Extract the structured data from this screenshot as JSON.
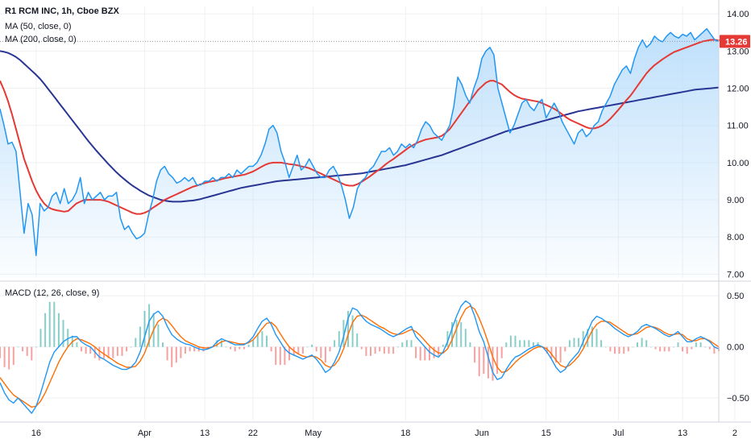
{
  "legend": {
    "symbol_line": "R1 RCM INC, 1h, Cboe BZX",
    "ma50": "MA (50, close, 0)",
    "ma200": "MA (200, close, 0)",
    "macd": "MACD (12, 26, close, 9)"
  },
  "last_price": "13.26",
  "colors": {
    "price": "#2196f3",
    "price_fill_top": "#bbdefb",
    "ma50": "#e53935",
    "ma200": "#283593",
    "macd_line": "#2196f3",
    "signal_line": "#ff6d00",
    "hist_pos": "#26a69a",
    "hist_neg": "#ef5350",
    "last_price_bg": "#e53935",
    "grid": "#eef0f3"
  },
  "chart_data": [
    {
      "type": "line",
      "ylim": [
        6.9,
        14.2
      ],
      "y_ticks": [
        "14.00",
        "13.00",
        "12.00",
        "11.00",
        "10.00",
        "9.00",
        "8.00",
        "7.00"
      ],
      "y_tick_values": [
        14,
        13,
        12,
        11,
        10,
        9,
        8,
        7
      ],
      "x_tick_labels": [
        "16",
        "Apr",
        "13",
        "22",
        "May",
        "18",
        "Jun",
        "15",
        "Jul",
        "13",
        "2"
      ],
      "x_tick_index": [
        9,
        36,
        51,
        63,
        78,
        101,
        120,
        136,
        154,
        170,
        183
      ],
      "series": [
        {
          "name": "Price",
          "values": [
            11.45,
            11.0,
            10.5,
            10.55,
            10.3,
            9.2,
            8.1,
            8.9,
            8.6,
            7.5,
            8.9,
            8.7,
            8.8,
            9.1,
            9.2,
            8.9,
            9.3,
            8.9,
            9.0,
            9.2,
            9.6,
            8.9,
            9.2,
            9.0,
            9.1,
            9.2,
            9.0,
            9.1,
            9.1,
            9.2,
            8.5,
            8.2,
            8.3,
            8.1,
            7.95,
            8.0,
            8.1,
            8.6,
            9.0,
            9.5,
            9.8,
            9.9,
            9.7,
            9.6,
            9.45,
            9.5,
            9.6,
            9.5,
            9.6,
            9.4,
            9.4,
            9.5,
            9.5,
            9.6,
            9.5,
            9.6,
            9.6,
            9.7,
            9.6,
            9.8,
            9.7,
            9.8,
            9.9,
            9.9,
            10.0,
            10.2,
            10.5,
            10.9,
            11.0,
            10.8,
            10.3,
            10.0,
            9.6,
            9.9,
            10.2,
            9.8,
            9.9,
            10.1,
            9.9,
            9.7,
            9.6,
            9.6,
            9.8,
            9.9,
            9.7,
            9.4,
            9.0,
            8.5,
            8.8,
            9.3,
            9.5,
            9.6,
            9.8,
            9.9,
            10.1,
            10.3,
            10.3,
            10.4,
            10.2,
            10.3,
            10.5,
            10.4,
            10.5,
            10.4,
            10.6,
            10.9,
            11.1,
            11.0,
            10.8,
            10.7,
            10.6,
            10.8,
            11.0,
            11.5,
            12.3,
            12.1,
            11.8,
            11.6,
            12.0,
            12.3,
            12.8,
            13.0,
            13.1,
            12.9,
            12.0,
            11.6,
            11.2,
            10.8,
            11.0,
            11.3,
            11.6,
            11.7,
            11.5,
            11.4,
            11.6,
            11.7,
            11.2,
            11.4,
            11.6,
            11.4,
            11.1,
            10.9,
            10.7,
            10.5,
            10.8,
            10.9,
            10.7,
            10.8,
            11.0,
            11.1,
            11.4,
            11.6,
            11.8,
            12.1,
            12.3,
            12.5,
            12.6,
            12.4,
            12.8,
            13.1,
            13.3,
            13.1,
            13.2,
            13.4,
            13.3,
            13.25,
            13.4,
            13.5,
            13.4,
            13.35,
            13.45,
            13.4,
            13.5,
            13.3,
            13.4,
            13.5,
            13.6,
            13.45,
            13.3,
            13.26
          ]
        },
        {
          "name": "MA (50, close, 0)",
          "values": [
            12.2,
            11.95,
            11.65,
            11.3,
            10.9,
            10.5,
            10.1,
            9.8,
            9.5,
            9.25,
            9.05,
            8.9,
            8.8,
            8.75,
            8.72,
            8.7,
            8.68,
            8.7,
            8.8,
            8.9,
            8.95,
            9.0,
            9.0,
            9.0,
            9.0,
            9.0,
            8.98,
            8.95,
            8.9,
            8.85,
            8.8,
            8.75,
            8.7,
            8.65,
            8.62,
            8.62,
            8.65,
            8.7,
            8.78,
            8.85,
            8.92,
            9.0,
            9.05,
            9.1,
            9.15,
            9.2,
            9.25,
            9.3,
            9.35,
            9.38,
            9.42,
            9.45,
            9.48,
            9.5,
            9.52,
            9.55,
            9.58,
            9.6,
            9.62,
            9.64,
            9.66,
            9.68,
            9.72,
            9.76,
            9.82,
            9.88,
            9.94,
            9.98,
            10.0,
            10.0,
            10.0,
            9.98,
            9.96,
            9.95,
            9.93,
            9.9,
            9.88,
            9.85,
            9.8,
            9.75,
            9.7,
            9.65,
            9.6,
            9.55,
            9.5,
            9.45,
            9.4,
            9.38,
            9.38,
            9.42,
            9.48,
            9.55,
            9.62,
            9.7,
            9.78,
            9.86,
            9.95,
            10.03,
            10.1,
            10.18,
            10.26,
            10.34,
            10.42,
            10.48,
            10.54,
            10.58,
            10.62,
            10.64,
            10.66,
            10.68,
            10.72,
            10.8,
            10.9,
            11.05,
            11.2,
            11.35,
            11.5,
            11.65,
            11.8,
            11.95,
            12.05,
            12.15,
            12.2,
            12.2,
            12.15,
            12.1,
            12.0,
            11.9,
            11.82,
            11.76,
            11.72,
            11.7,
            11.68,
            11.66,
            11.64,
            11.6,
            11.55,
            11.5,
            11.45,
            11.38,
            11.3,
            11.22,
            11.15,
            11.1,
            11.05,
            11.0,
            10.95,
            10.92,
            10.92,
            10.95,
            11.0,
            11.08,
            11.18,
            11.3,
            11.42,
            11.55,
            11.68,
            11.8,
            11.95,
            12.1,
            12.25,
            12.4,
            12.52,
            12.62,
            12.7,
            12.78,
            12.85,
            12.92,
            12.98,
            13.02,
            13.06,
            13.1,
            13.14,
            13.18,
            13.22,
            13.26,
            13.28,
            13.3,
            13.3,
            13.29,
            13.28,
            13.26
          ]
        },
        {
          "name": "MA (200, close, 0)",
          "values": [
            13.0,
            12.98,
            12.95,
            12.9,
            12.84,
            12.76,
            12.66,
            12.56,
            12.46,
            12.36,
            12.25,
            12.12,
            11.98,
            11.84,
            11.7,
            11.56,
            11.42,
            11.28,
            11.14,
            11.0,
            10.86,
            10.72,
            10.58,
            10.45,
            10.32,
            10.2,
            10.08,
            9.96,
            9.85,
            9.74,
            9.64,
            9.55,
            9.46,
            9.38,
            9.31,
            9.24,
            9.18,
            9.12,
            9.08,
            9.04,
            9.0,
            8.98,
            8.96,
            8.95,
            8.95,
            8.95,
            8.96,
            8.97,
            8.98,
            9.0,
            9.02,
            9.05,
            9.08,
            9.11,
            9.14,
            9.17,
            9.2,
            9.23,
            9.26,
            9.29,
            9.32,
            9.34,
            9.36,
            9.38,
            9.4,
            9.42,
            9.44,
            9.46,
            9.48,
            9.5,
            9.51,
            9.52,
            9.53,
            9.54,
            9.55,
            9.56,
            9.57,
            9.58,
            9.59,
            9.6,
            9.61,
            9.62,
            9.63,
            9.64,
            9.65,
            9.66,
            9.67,
            9.68,
            9.69,
            9.7,
            9.71,
            9.73,
            9.75,
            9.77,
            9.79,
            9.81,
            9.83,
            9.85,
            9.87,
            9.89,
            9.91,
            9.93,
            9.96,
            9.99,
            10.02,
            10.05,
            10.08,
            10.11,
            10.14,
            10.17,
            10.2,
            10.24,
            10.28,
            10.32,
            10.36,
            10.4,
            10.44,
            10.48,
            10.52,
            10.56,
            10.6,
            10.64,
            10.68,
            10.72,
            10.76,
            10.8,
            10.84,
            10.87,
            10.9,
            10.93,
            10.96,
            10.99,
            11.02,
            11.05,
            11.08,
            11.11,
            11.14,
            11.17,
            11.2,
            11.23,
            11.26,
            11.29,
            11.32,
            11.35,
            11.38,
            11.4,
            11.42,
            11.44,
            11.46,
            11.48,
            11.5,
            11.52,
            11.54,
            11.56,
            11.58,
            11.6,
            11.62,
            11.64,
            11.66,
            11.68,
            11.7,
            11.72,
            11.74,
            11.76,
            11.78,
            11.8,
            11.82,
            11.84,
            11.86,
            11.88,
            11.9,
            11.92,
            11.94,
            11.96,
            11.97,
            11.98,
            11.99,
            12.0,
            12.01,
            12.02
          ]
        }
      ]
    },
    {
      "type": "line",
      "ylim": [
        -0.72,
        0.62
      ],
      "y_ticks": [
        "0.50",
        "0.00",
        "−0.50"
      ],
      "y_tick_values": [
        0.5,
        0.0,
        -0.5
      ],
      "series": [
        {
          "name": "MACD",
          "values": [
            -0.35,
            -0.45,
            -0.52,
            -0.55,
            -0.5,
            -0.55,
            -0.6,
            -0.65,
            -0.58,
            -0.45,
            -0.3,
            -0.15,
            -0.05,
            0.0,
            0.05,
            0.08,
            0.1,
            0.1,
            0.05,
            0.02,
            0.0,
            -0.05,
            -0.1,
            -0.12,
            -0.15,
            -0.18,
            -0.2,
            -0.22,
            -0.22,
            -0.2,
            -0.15,
            -0.05,
            0.1,
            0.25,
            0.32,
            0.35,
            0.3,
            0.2,
            0.12,
            0.08,
            0.05,
            0.03,
            0.02,
            0.0,
            -0.02,
            -0.03,
            -0.02,
            0.0,
            0.05,
            0.08,
            0.06,
            0.04,
            0.02,
            0.02,
            0.02,
            0.05,
            0.1,
            0.18,
            0.25,
            0.28,
            0.22,
            0.12,
            0.05,
            -0.02,
            -0.06,
            -0.08,
            -0.1,
            -0.12,
            -0.1,
            -0.08,
            -0.12,
            -0.18,
            -0.25,
            -0.22,
            -0.15,
            -0.05,
            0.1,
            0.28,
            0.38,
            0.36,
            0.3,
            0.25,
            0.22,
            0.2,
            0.18,
            0.15,
            0.12,
            0.1,
            0.12,
            0.15,
            0.18,
            0.2,
            0.1,
            0.05,
            0.0,
            -0.05,
            -0.08,
            -0.1,
            -0.05,
            0.05,
            0.18,
            0.3,
            0.4,
            0.45,
            0.42,
            0.3,
            0.15,
            0.05,
            -0.1,
            -0.25,
            -0.32,
            -0.3,
            -0.22,
            -0.15,
            -0.1,
            -0.08,
            -0.05,
            -0.02,
            0.0,
            0.02,
            0.0,
            -0.05,
            -0.12,
            -0.2,
            -0.25,
            -0.22,
            -0.15,
            -0.1,
            -0.05,
            0.05,
            0.15,
            0.25,
            0.3,
            0.28,
            0.25,
            0.22,
            0.18,
            0.15,
            0.12,
            0.1,
            0.12,
            0.15,
            0.2,
            0.22,
            0.2,
            0.18,
            0.15,
            0.12,
            0.1,
            0.12,
            0.15,
            0.1,
            0.05,
            0.05,
            0.08,
            0.1,
            0.08,
            0.05,
            0.0,
            -0.02
          ]
        },
        {
          "name": "Signal",
          "values": [
            -0.3,
            -0.36,
            -0.42,
            -0.47,
            -0.5,
            -0.53,
            -0.56,
            -0.59,
            -0.58,
            -0.53,
            -0.45,
            -0.35,
            -0.25,
            -0.15,
            -0.07,
            0.0,
            0.05,
            0.08,
            0.07,
            0.05,
            0.03,
            0.0,
            -0.04,
            -0.07,
            -0.1,
            -0.13,
            -0.16,
            -0.18,
            -0.2,
            -0.2,
            -0.19,
            -0.14,
            -0.06,
            0.06,
            0.17,
            0.25,
            0.28,
            0.26,
            0.21,
            0.15,
            0.1,
            0.06,
            0.04,
            0.02,
            0.0,
            -0.01,
            -0.01,
            0.0,
            0.02,
            0.05,
            0.06,
            0.05,
            0.04,
            0.03,
            0.03,
            0.04,
            0.07,
            0.12,
            0.18,
            0.23,
            0.24,
            0.2,
            0.13,
            0.06,
            0.0,
            -0.04,
            -0.07,
            -0.09,
            -0.1,
            -0.09,
            -0.1,
            -0.13,
            -0.18,
            -0.2,
            -0.18,
            -0.12,
            -0.02,
            0.12,
            0.24,
            0.3,
            0.31,
            0.29,
            0.26,
            0.23,
            0.2,
            0.18,
            0.15,
            0.13,
            0.12,
            0.13,
            0.15,
            0.17,
            0.15,
            0.11,
            0.06,
            0.01,
            -0.03,
            -0.06,
            -0.06,
            -0.02,
            0.07,
            0.18,
            0.29,
            0.37,
            0.4,
            0.37,
            0.28,
            0.17,
            0.04,
            -0.1,
            -0.2,
            -0.25,
            -0.24,
            -0.2,
            -0.15,
            -0.11,
            -0.08,
            -0.05,
            -0.02,
            0.0,
            0.0,
            -0.02,
            -0.07,
            -0.13,
            -0.18,
            -0.2,
            -0.18,
            -0.14,
            -0.09,
            -0.02,
            0.07,
            0.16,
            0.22,
            0.25,
            0.25,
            0.24,
            0.21,
            0.18,
            0.15,
            0.12,
            0.12,
            0.13,
            0.16,
            0.19,
            0.2,
            0.19,
            0.17,
            0.14,
            0.12,
            0.12,
            0.13,
            0.12,
            0.08,
            0.06,
            0.06,
            0.08,
            0.08,
            0.06,
            0.03,
            0.0
          ]
        }
      ]
    }
  ]
}
